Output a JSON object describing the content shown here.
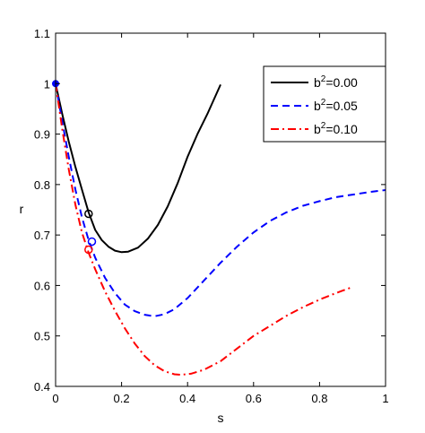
{
  "chart_data": {
    "type": "line",
    "title": "",
    "xlabel": "s",
    "ylabel": "r",
    "xlim": [
      0,
      1
    ],
    "ylim": [
      0.4,
      1.1
    ],
    "x_ticks": [
      0,
      0.2,
      0.4,
      0.6,
      0.8,
      1
    ],
    "x_tick_labels": [
      "0",
      "0.2",
      "0.4",
      "0.6",
      "0.8",
      "1"
    ],
    "y_ticks": [
      0.4,
      0.5,
      0.6,
      0.7,
      0.8,
      0.9,
      1,
      1.1
    ],
    "y_tick_labels": [
      "0.4",
      "0.5",
      "0.6",
      "0.7",
      "0.8",
      "0.9",
      "1",
      "1.1"
    ],
    "grid": false,
    "legend_position": "top-right",
    "series": [
      {
        "name_prefix": "b",
        "name_superscript": "2",
        "name_suffix": "=0.00",
        "color": "#000000",
        "style": "solid",
        "x": [
          0,
          0.02,
          0.04,
          0.06,
          0.08,
          0.1,
          0.12,
          0.14,
          0.16,
          0.18,
          0.2,
          0.22,
          0.25,
          0.28,
          0.31,
          0.34,
          0.37,
          0.4,
          0.43,
          0.46,
          0.5
        ],
        "y": [
          1.0,
          0.94,
          0.885,
          0.835,
          0.79,
          0.745,
          0.71,
          0.69,
          0.677,
          0.669,
          0.666,
          0.667,
          0.675,
          0.693,
          0.72,
          0.757,
          0.803,
          0.855,
          0.9,
          0.94,
          0.998
        ],
        "marker": {
          "x": 0.1,
          "y": 0.742
        }
      },
      {
        "name_prefix": "b",
        "name_superscript": "2",
        "name_suffix": "=0.05",
        "color": "#0000ff",
        "style": "dashed",
        "x": [
          0,
          0.02,
          0.04,
          0.06,
          0.08,
          0.1,
          0.12,
          0.15,
          0.18,
          0.21,
          0.24,
          0.27,
          0.3,
          0.33,
          0.36,
          0.4,
          0.45,
          0.5,
          0.55,
          0.6,
          0.65,
          0.7,
          0.75,
          0.8,
          0.85,
          0.9,
          0.95,
          1.0
        ],
        "y": [
          1.0,
          0.925,
          0.855,
          0.79,
          0.735,
          0.69,
          0.655,
          0.615,
          0.585,
          0.562,
          0.549,
          0.542,
          0.539,
          0.543,
          0.553,
          0.575,
          0.61,
          0.645,
          0.677,
          0.705,
          0.728,
          0.745,
          0.758,
          0.767,
          0.775,
          0.78,
          0.785,
          0.789
        ],
        "marker": {
          "x": 0.11,
          "y": 0.687
        }
      },
      {
        "name_prefix": "b",
        "name_superscript": "2",
        "name_suffix": "=0.10",
        "color": "#ff0000",
        "style": "dashdot",
        "x": [
          0,
          0.02,
          0.04,
          0.06,
          0.08,
          0.1,
          0.12,
          0.15,
          0.18,
          0.21,
          0.24,
          0.27,
          0.3,
          0.33,
          0.36,
          0.38,
          0.41,
          0.45,
          0.5,
          0.55,
          0.6,
          0.65,
          0.7,
          0.75,
          0.8,
          0.85,
          0.9
        ],
        "y": [
          1.0,
          0.91,
          0.83,
          0.76,
          0.705,
          0.665,
          0.632,
          0.588,
          0.55,
          0.515,
          0.485,
          0.46,
          0.442,
          0.43,
          0.424,
          0.423,
          0.425,
          0.433,
          0.45,
          0.475,
          0.5,
          0.52,
          0.54,
          0.557,
          0.572,
          0.585,
          0.597
        ],
        "marker": {
          "x": 0.1,
          "y": 0.671
        }
      }
    ],
    "start_point": {
      "x": 0,
      "y": 1.0,
      "color": "#0000ff"
    }
  }
}
